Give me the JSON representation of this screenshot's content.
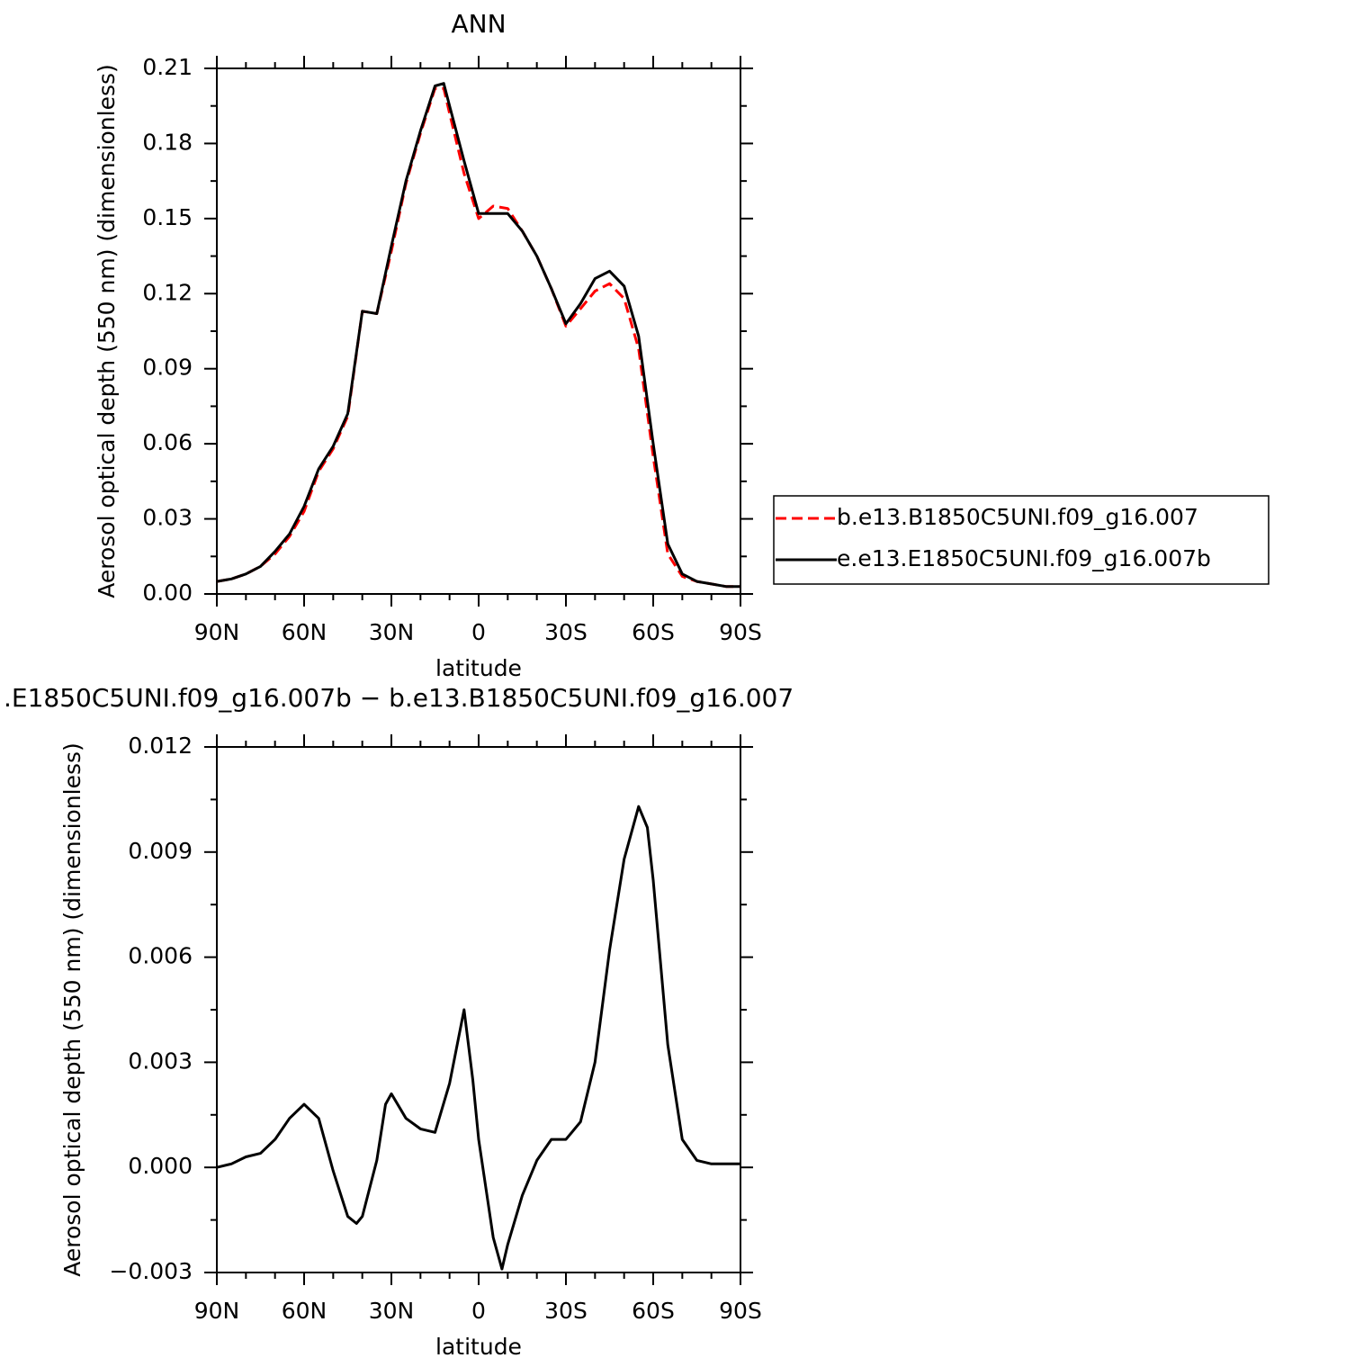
{
  "chart_data": [
    {
      "type": "line",
      "title": "ANN",
      "xlabel": "latitude",
      "ylabel": "Aerosol optical depth (550 nm) (dimensionless)",
      "x": [
        90,
        85,
        80,
        75,
        70,
        65,
        60,
        55,
        50,
        45,
        40,
        35,
        30,
        25,
        20,
        15,
        12,
        10,
        5,
        0,
        -5,
        -10,
        -15,
        -20,
        -25,
        -30,
        -35,
        -40,
        -45,
        -50,
        -55,
        -60,
        -65,
        -70,
        -75,
        -80,
        -85,
        -90
      ],
      "series": [
        {
          "name": "b.e13.B1850C5UNI.f09_g16.007",
          "color": "#ff0000",
          "style": "dashed",
          "values": [
            0.005,
            0.006,
            0.008,
            0.011,
            0.016,
            0.023,
            0.033,
            0.049,
            0.058,
            0.071,
            0.113,
            0.112,
            0.137,
            0.164,
            0.184,
            0.202,
            0.202,
            0.192,
            0.168,
            0.15,
            0.155,
            0.154,
            0.145,
            0.135,
            0.122,
            0.107,
            0.114,
            0.121,
            0.124,
            0.118,
            0.098,
            0.055,
            0.016,
            0.007,
            0.005,
            0.004,
            0.003,
            0.003
          ]
        },
        {
          "name": "e.e13.E1850C5UNI.f09_g16.007b",
          "color": "#000000",
          "style": "solid",
          "values": [
            0.005,
            0.006,
            0.008,
            0.011,
            0.017,
            0.024,
            0.035,
            0.05,
            0.059,
            0.072,
            0.113,
            0.112,
            0.139,
            0.165,
            0.185,
            0.203,
            0.204,
            0.195,
            0.173,
            0.152,
            0.152,
            0.152,
            0.145,
            0.135,
            0.122,
            0.108,
            0.116,
            0.126,
            0.129,
            0.123,
            0.103,
            0.06,
            0.02,
            0.008,
            0.005,
            0.004,
            0.003,
            0.003
          ]
        }
      ],
      "xlim": [
        90,
        -90
      ],
      "xticks": [
        {
          "value": 90,
          "label": "90N"
        },
        {
          "value": 60,
          "label": "60N"
        },
        {
          "value": 30,
          "label": "30N"
        },
        0,
        {
          "value": -30,
          "label": "30S"
        },
        {
          "value": -60,
          "label": "60S"
        },
        {
          "value": -90,
          "label": "90S"
        }
      ],
      "ylim": [
        0,
        0.21
      ],
      "yticks": [
        {
          "value": 0,
          "label": "0.00"
        },
        0.03,
        0.06,
        0.09,
        0.12,
        0.15,
        0.18,
        0.21
      ]
    },
    {
      "type": "line",
      "title": ".E1850C5UNI.f09_g16.007b − b.e13.B1850C5UNI.f09_g16.007",
      "xlabel": "latitude",
      "ylabel": "Aerosol optical depth (550 nm) (dimensionless)",
      "x": [
        90,
        85,
        80,
        75,
        70,
        65,
        60,
        55,
        50,
        45,
        42,
        40,
        35,
        32,
        30,
        25,
        20,
        15,
        10,
        5,
        2,
        0,
        -5,
        -8,
        -10,
        -15,
        -20,
        -25,
        -30,
        -35,
        -40,
        -45,
        -50,
        -55,
        -58,
        -60,
        -65,
        -70,
        -75,
        -80,
        -85,
        -90
      ],
      "series": [
        {
          "color": "#000000",
          "style": "solid",
          "values": [
            0.0,
            0.0001,
            0.0003,
            0.0004,
            0.0008,
            0.0014,
            0.0018,
            0.0014,
            -0.0001,
            -0.0014,
            -0.0016,
            -0.0014,
            0.0002,
            0.0018,
            0.0021,
            0.0014,
            0.0011,
            0.001,
            0.0024,
            0.0045,
            0.0025,
            0.0008,
            -0.002,
            -0.0029,
            -0.0022,
            -0.0008,
            0.0002,
            0.0008,
            0.0008,
            0.0013,
            0.003,
            0.0062,
            0.0088,
            0.0103,
            0.0097,
            0.0082,
            0.0035,
            0.0008,
            0.0002,
            0.0001,
            0.0001,
            0.0001
          ]
        }
      ],
      "xlim": [
        90,
        -90
      ],
      "xticks": [
        {
          "value": 90,
          "label": "90N"
        },
        {
          "value": 60,
          "label": "60N"
        },
        {
          "value": 30,
          "label": "30N"
        },
        0,
        {
          "value": -30,
          "label": "30S"
        },
        {
          "value": -60,
          "label": "60S"
        },
        {
          "value": -90,
          "label": "90S"
        }
      ],
      "ylim": [
        -0.003,
        0.012
      ],
      "yticks": [
        {
          "value": -0.003,
          "label": "−0.003"
        },
        {
          "value": 0,
          "label": "0.000"
        },
        0.003,
        0.006,
        0.009,
        0.012
      ]
    }
  ]
}
